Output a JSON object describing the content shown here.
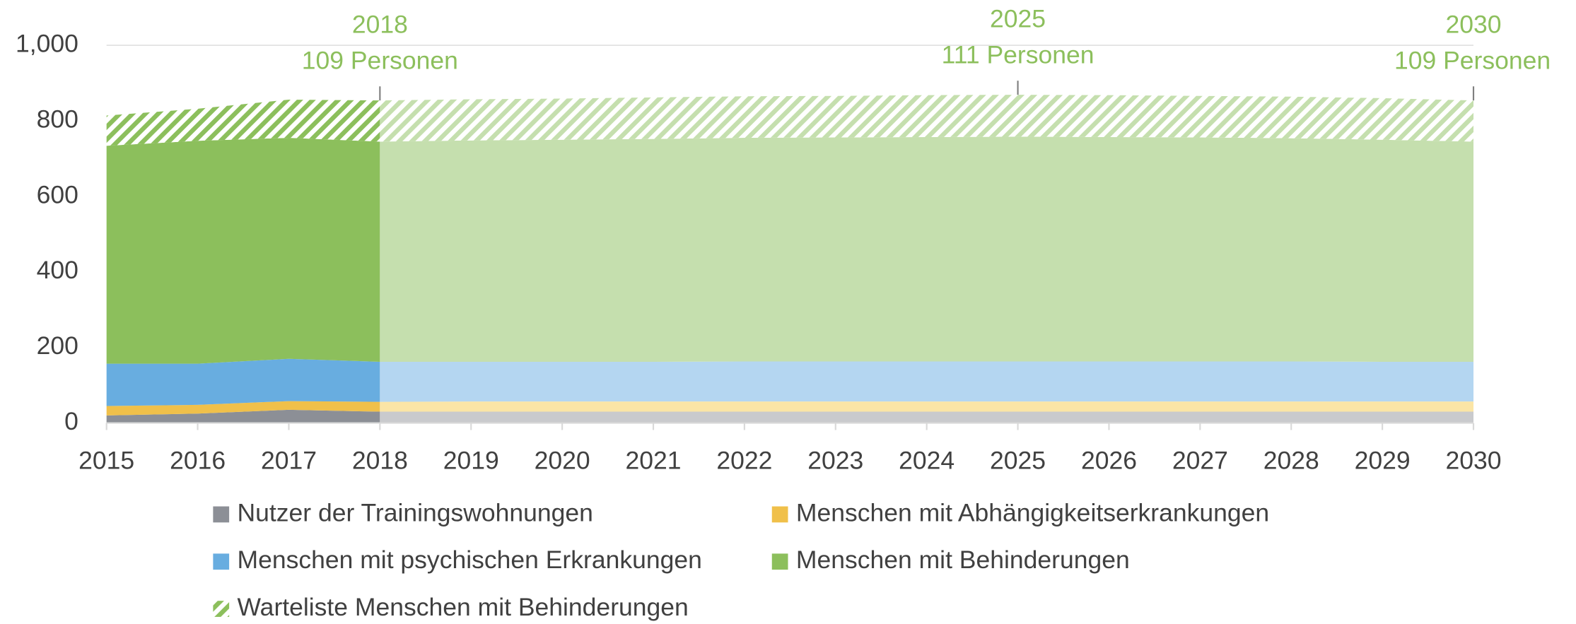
{
  "chart_data": {
    "type": "area",
    "stacked": true,
    "x": [
      2015,
      2016,
      2017,
      2018,
      2019,
      2020,
      2021,
      2022,
      2023,
      2024,
      2025,
      2026,
      2027,
      2028,
      2029,
      2030
    ],
    "xlim": [
      2015,
      2030
    ],
    "xticks": [
      2015,
      2016,
      2017,
      2018,
      2019,
      2020,
      2021,
      2022,
      2023,
      2024,
      2025,
      2026,
      2027,
      2028,
      2029,
      2030
    ],
    "ylim": [
      0,
      1000
    ],
    "yticks": [
      0,
      200,
      400,
      600,
      800,
      {
        "value": 1000,
        "label": "1,000"
      }
    ],
    "projection_start": 2018,
    "series": [
      {
        "name": "Nutzer der Trainingswohnungen",
        "color": "#8c8f96",
        "projection_color": "#c9cacd",
        "values": [
          20,
          25,
          35,
          30,
          30,
          30,
          30,
          30,
          30,
          30,
          30,
          30,
          30,
          30,
          30,
          30
        ]
      },
      {
        "name": "Menschen mit Abhängigkeitserkrankungen",
        "color": "#f0c04a",
        "projection_color": "#fbe5a6",
        "values": [
          25,
          23,
          23,
          26,
          27,
          27,
          27,
          27,
          27,
          27,
          27,
          27,
          27,
          27,
          27,
          27
        ]
      },
      {
        "name": "Menschen mit psychischen Erkrankungen",
        "color": "#68ade0",
        "projection_color": "#b4d6f1",
        "values": [
          112,
          109,
          112,
          106,
          105,
          105,
          105,
          106,
          106,
          106,
          106,
          106,
          106,
          106,
          105,
          105
        ]
      },
      {
        "name": "Menschen mit Behinderungen",
        "color": "#8cbf5c",
        "projection_color": "#c5dfae",
        "values": [
          577,
          590,
          585,
          583,
          586,
          588,
          590,
          592,
          593,
          594,
          595,
          594,
          593,
          591,
          588,
          583
        ]
      },
      {
        "name": "Warteliste Menschen mit Behinderungen",
        "color": "#8cbf5c",
        "projection_color": "#c5dfae",
        "pattern": "hatch",
        "values": [
          80,
          85,
          101,
          109,
          109,
          109,
          110,
          110,
          110,
          111,
          111,
          111,
          110,
          110,
          110,
          109
        ]
      }
    ],
    "annotations": [
      {
        "x": 2018,
        "label": "2018",
        "text": "109 Personen"
      },
      {
        "x": 2025,
        "label": "2025",
        "text": "111 Personen"
      },
      {
        "x": 2030,
        "label": "2030",
        "text": "109 Personen"
      }
    ]
  }
}
